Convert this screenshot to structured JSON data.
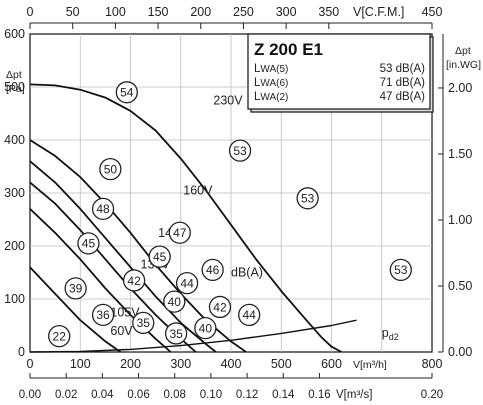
{
  "chart_data": {
    "type": "line",
    "title": "Z 200 E1",
    "axes": {
      "x_bottom_m3h": {
        "label": "V[m³/h]",
        "min": 0,
        "max": 800,
        "ticks": [
          "0",
          "100",
          "200",
          "300",
          "400",
          "500",
          "600",
          "800"
        ]
      },
      "x_top_cfm": {
        "label": "V[C.F.M.]",
        "min": 0,
        "max": 450,
        "ticks": [
          "0",
          "50",
          "100",
          "150",
          "200",
          "250",
          "300",
          "350",
          "450"
        ]
      },
      "x_bottom_m3s": {
        "label": "V[m³/s]",
        "min": 0,
        "max": 0.2,
        "ticks": [
          "0.00",
          "0.02",
          "0.04",
          "0.06",
          "0.08",
          "0.10",
          "0.12",
          "0.14",
          "0.16",
          "0.20"
        ]
      },
      "y_left_pa": {
        "label_top": "Δpt",
        "label_unit": "[Pa]",
        "min": 0,
        "max": 600,
        "ticks": [
          "0",
          "100",
          "200",
          "300",
          "400",
          "500",
          "600"
        ]
      },
      "y_right_inwg": {
        "label_top": "Δpt",
        "label_unit": "[in.WG]",
        "min": 0,
        "max": 2.0,
        "ticks": [
          "0.00",
          "0.50",
          "1.00",
          "1.50",
          "2.00"
        ]
      }
    },
    "legend": [
      {
        "label_main": "L",
        "label_sub": "WA(5)",
        "value": "53 dB(A)"
      },
      {
        "label_main": "L",
        "label_sub": "WA(6)",
        "value": "71 dB(A)"
      },
      {
        "label_main": "L",
        "label_sub": "WA(2)",
        "value": "47 dB(A)"
      }
    ],
    "series": [
      {
        "name": "230V",
        "points": [
          [
            0,
            505
          ],
          [
            50,
            503
          ],
          [
            100,
            495
          ],
          [
            150,
            480
          ],
          [
            200,
            455
          ],
          [
            250,
            418
          ],
          [
            300,
            365
          ],
          [
            350,
            305
          ],
          [
            400,
            240
          ],
          [
            450,
            175
          ],
          [
            500,
            115
          ],
          [
            550,
            60
          ],
          [
            580,
            28
          ],
          [
            600,
            10
          ],
          [
            620,
            0
          ]
        ]
      },
      {
        "name": "160V",
        "points": [
          [
            0,
            400
          ],
          [
            50,
            370
          ],
          [
            100,
            330
          ],
          [
            150,
            280
          ],
          [
            200,
            225
          ],
          [
            250,
            165
          ],
          [
            300,
            110
          ],
          [
            350,
            60
          ],
          [
            400,
            20
          ],
          [
            430,
            0
          ]
        ]
      },
      {
        "name": "145V",
        "points": [
          [
            0,
            360
          ],
          [
            50,
            320
          ],
          [
            100,
            270
          ],
          [
            150,
            215
          ],
          [
            200,
            160
          ],
          [
            250,
            105
          ],
          [
            300,
            55
          ],
          [
            350,
            15
          ],
          [
            370,
            0
          ]
        ]
      },
      {
        "name": "130V",
        "points": [
          [
            0,
            320
          ],
          [
            50,
            280
          ],
          [
            100,
            230
          ],
          [
            150,
            175
          ],
          [
            200,
            120
          ],
          [
            250,
            70
          ],
          [
            300,
            25
          ],
          [
            330,
            0
          ]
        ]
      },
      {
        "name": "105V",
        "points": [
          [
            0,
            270
          ],
          [
            50,
            225
          ],
          [
            100,
            175
          ],
          [
            150,
            120
          ],
          [
            200,
            70
          ],
          [
            250,
            25
          ],
          [
            280,
            0
          ]
        ]
      },
      {
        "name": "60V",
        "points": [
          [
            0,
            160
          ],
          [
            50,
            110
          ],
          [
            100,
            60
          ],
          [
            150,
            20
          ],
          [
            180,
            0
          ]
        ]
      },
      {
        "name": "pd2",
        "points": [
          [
            0,
            0
          ],
          [
            100,
            1
          ],
          [
            200,
            5
          ],
          [
            300,
            12
          ],
          [
            400,
            22
          ],
          [
            500,
            35
          ],
          [
            600,
            50
          ],
          [
            650,
            60
          ]
        ]
      }
    ],
    "curve_labels": [
      {
        "text": "230V",
        "x": 365,
        "y": 475
      },
      {
        "text": "160V",
        "x": 305,
        "y": 305
      },
      {
        "text": "145V",
        "x": 255,
        "y": 225
      },
      {
        "text": "130V",
        "x": 220,
        "y": 165
      },
      {
        "text": "105V",
        "x": 160,
        "y": 75
      },
      {
        "text": "60V",
        "x": 160,
        "y": 40
      },
      {
        "text": "dB(A)",
        "x": 400,
        "y": 150
      }
    ],
    "pd2_label": {
      "text": "p",
      "sub": "d2",
      "x": 700,
      "y": 25
    },
    "dba_markers": [
      {
        "value": "54",
        "x": 265,
        "y": 490
      },
      {
        "value": "53",
        "x": 575,
        "y": 380
      },
      {
        "value": "53",
        "x": 760,
        "y": 290
      },
      {
        "value": "53",
        "x": 1015,
        "y": 155
      },
      {
        "value": "50",
        "x": 220,
        "y": 345
      },
      {
        "value": "48",
        "x": 200,
        "y": 270
      },
      {
        "value": "47",
        "x": 410,
        "y": 225
      },
      {
        "value": "46",
        "x": 500,
        "y": 155
      },
      {
        "value": "45",
        "x": 160,
        "y": 205
      },
      {
        "value": "45",
        "x": 355,
        "y": 180
      },
      {
        "value": "44",
        "x": 430,
        "y": 130
      },
      {
        "value": "44",
        "x": 600,
        "y": 70
      },
      {
        "value": "42",
        "x": 285,
        "y": 135
      },
      {
        "value": "42",
        "x": 520,
        "y": 85
      },
      {
        "value": "40",
        "x": 395,
        "y": 95
      },
      {
        "value": "40",
        "x": 480,
        "y": 45
      },
      {
        "value": "39",
        "x": 125,
        "y": 120
      },
      {
        "value": "36",
        "x": 200,
        "y": 70
      },
      {
        "value": "35",
        "x": 310,
        "y": 55
      },
      {
        "value": "35",
        "x": 400,
        "y": 35
      },
      {
        "value": "22",
        "x": 80,
        "y": 30
      }
    ],
    "grid": true
  }
}
